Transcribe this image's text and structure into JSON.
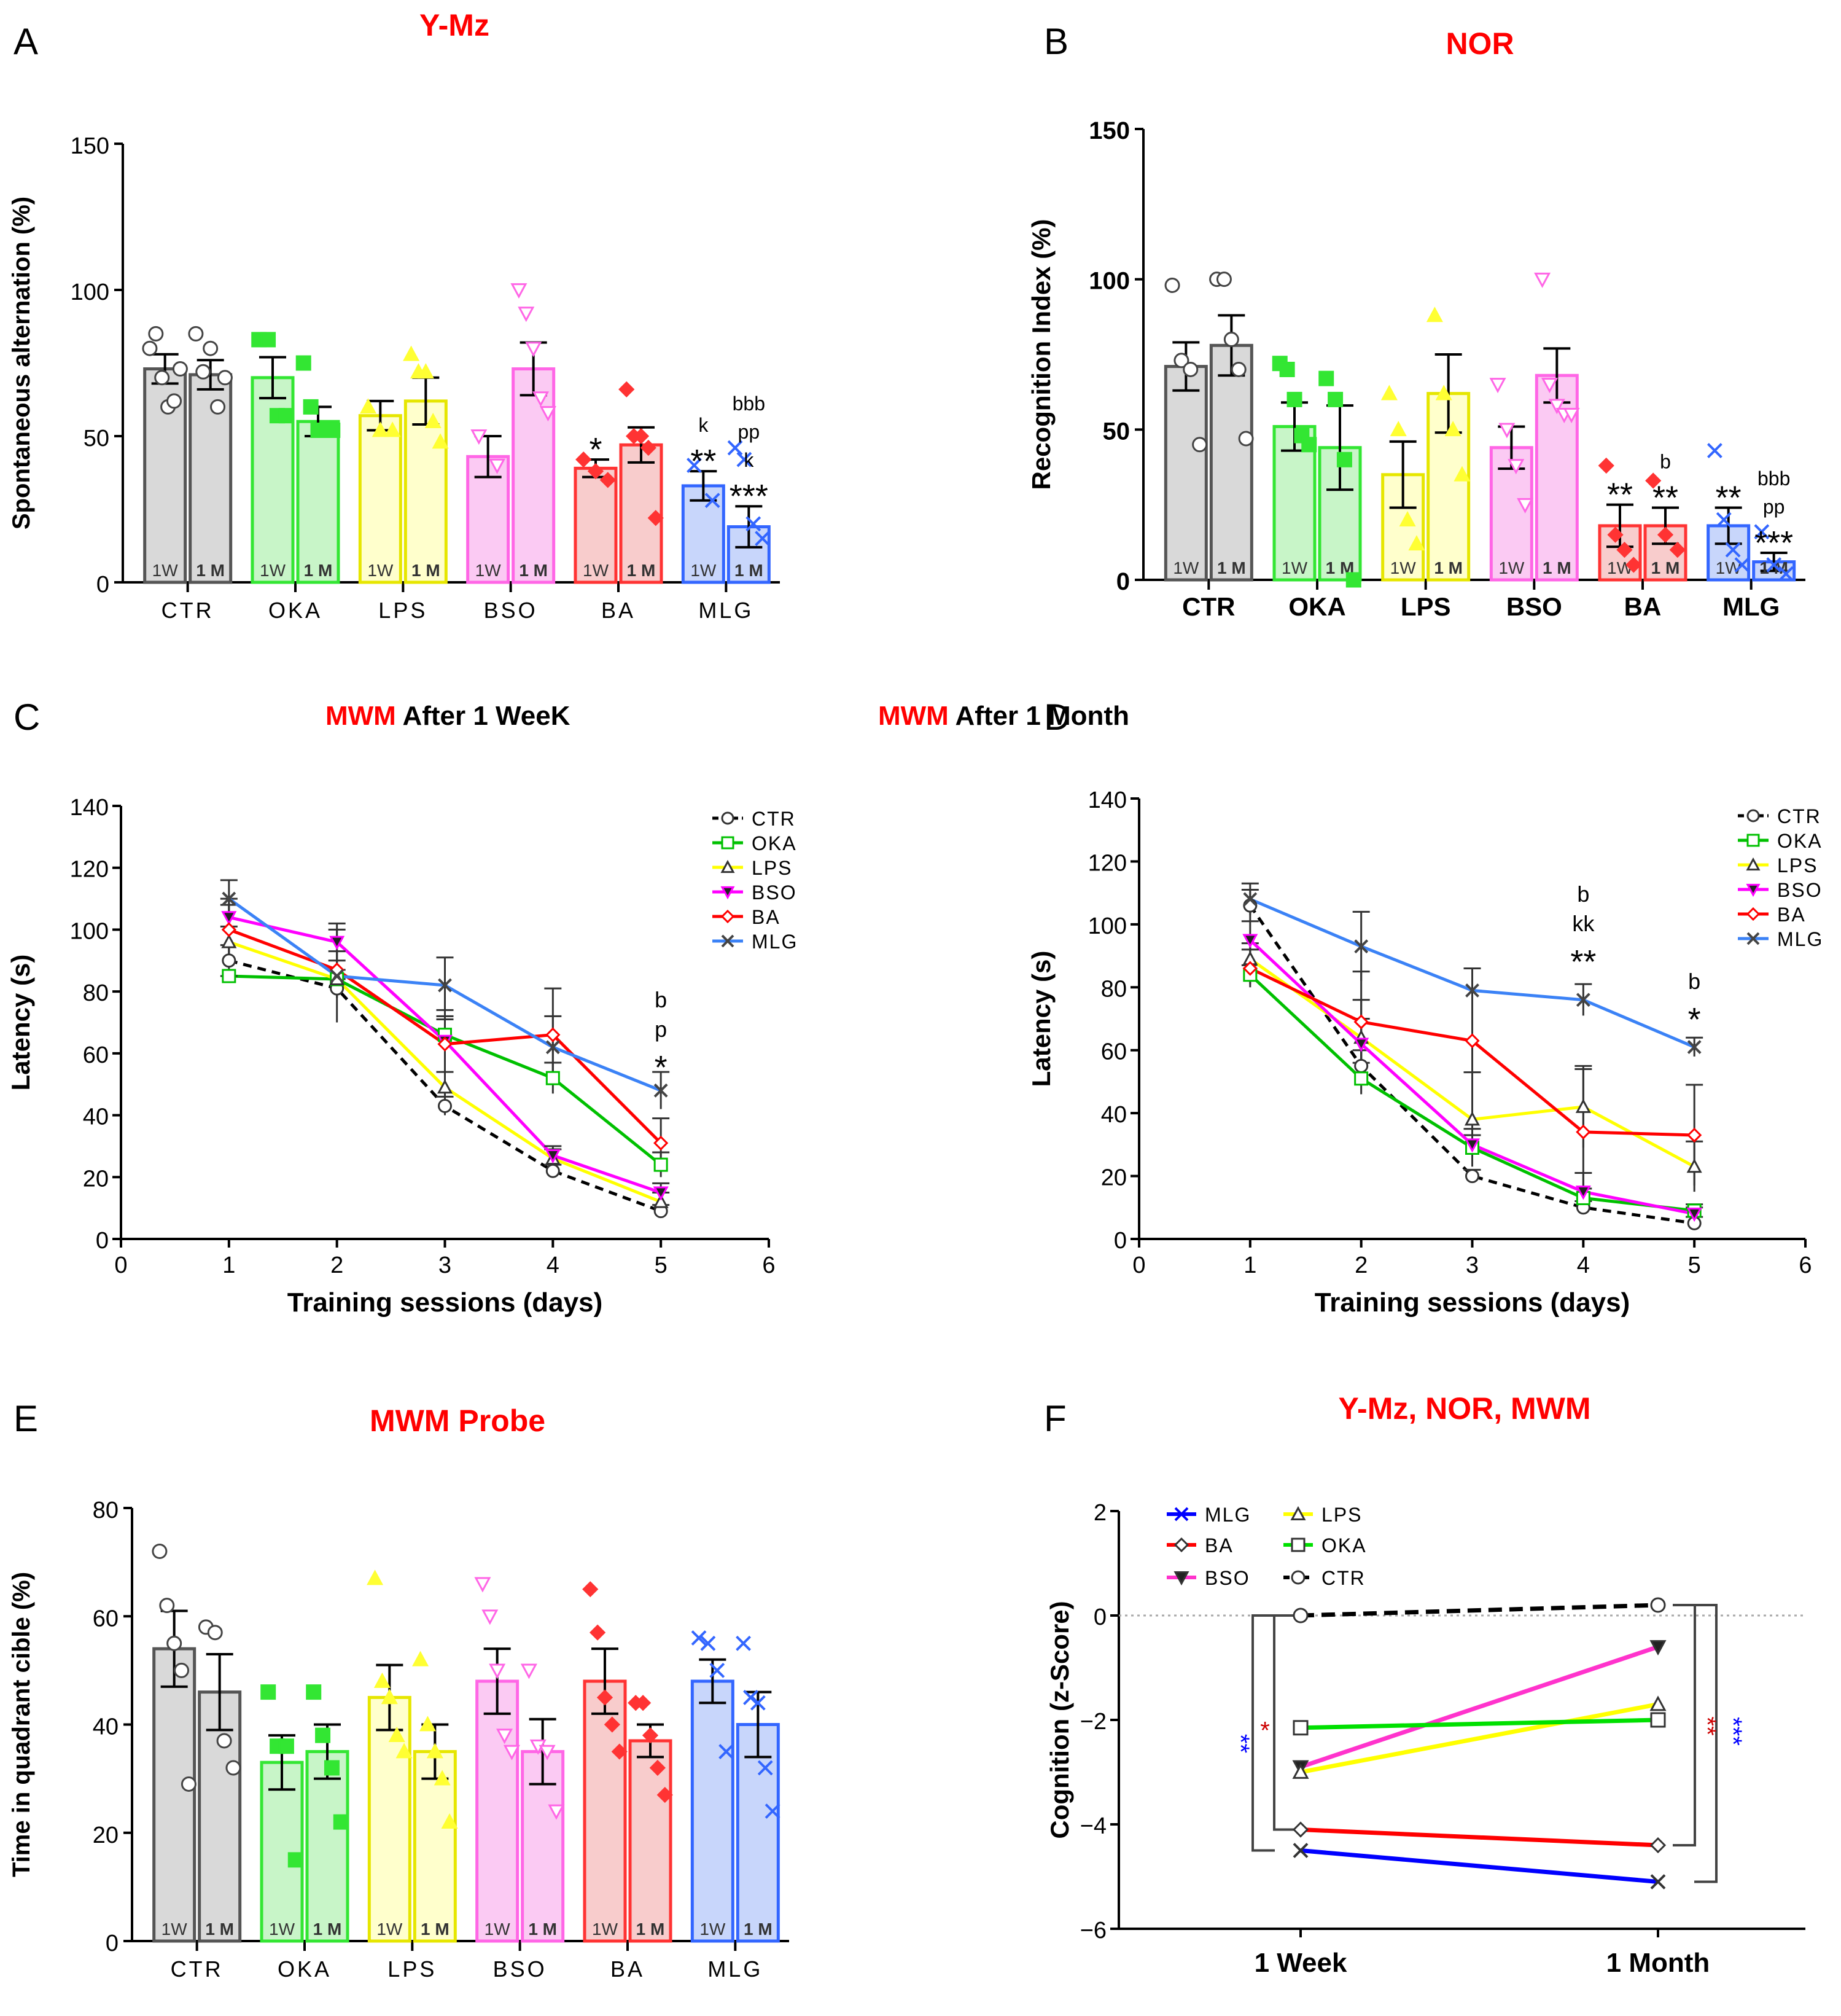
{
  "figure_title": "Behavioral tests figure",
  "panels": {
    "A": {
      "letter": "A",
      "title": "Y-Mz"
    },
    "B": {
      "letter": "B",
      "title": "NOR"
    },
    "C": {
      "letter": "C",
      "title_red": "MWM",
      "title_black": "After 1 WeeK"
    },
    "D": {
      "letter": "D",
      "title_red": "MWM",
      "title_black": "After 1 Month"
    },
    "E": {
      "letter": "E",
      "title": "MWM Probe"
    },
    "F": {
      "letter": "F",
      "title": "Y-Mz, NOR, MWM"
    }
  },
  "group_colors": {
    "CTR": "#c9c9c9",
    "OKA": "#33e633",
    "LPS": "#ffff33",
    "BSO": "#ff66e6",
    "BA": "#ff3333",
    "MLG": "#3366ff"
  },
  "group_fill": {
    "CTR": "#d9d9d9",
    "OKA": "#c8f5c8",
    "LPS": "#ffffcc",
    "BSO": "#fbcaf3",
    "BA": "#f8cccc",
    "MLG": "#c8d6fb"
  },
  "line_colors": {
    "CTR": "#000000",
    "OKA": "#00c000",
    "LPS": "#ffff00",
    "BSO": "#ff00ff",
    "BA": "#ff0000",
    "MLG": "#3b82f6"
  },
  "f_colors": {
    "MLG": "#0000ff",
    "BA": "#ff0000",
    "BSO": "#ff33cc",
    "LPS": "#ffff00",
    "OKA": "#00e000",
    "CTR": "#000000"
  },
  "chart_data": [
    {
      "id": "A",
      "type": "bar",
      "title": "Y-Mz",
      "ylabel": "Spontaneous alternation (%)",
      "ylim": [
        0,
        150
      ],
      "yticks": [
        0,
        50,
        100,
        150
      ],
      "categories": [
        "CTR",
        "OKA",
        "LPS",
        "BSO",
        "BA",
        "MLG"
      ],
      "bar_labels": [
        "1W",
        "1 M"
      ],
      "series": [
        {
          "name": "1W",
          "values": [
            73,
            70,
            57,
            43,
            39,
            33
          ],
          "sem": [
            5,
            7,
            5,
            7,
            3,
            5
          ]
        },
        {
          "name": "1 M",
          "values": [
            71,
            55,
            62,
            73,
            47,
            19
          ],
          "sem": [
            5,
            5,
            8,
            9,
            6,
            7
          ]
        }
      ],
      "points": [
        [
          [
            80,
            85,
            70,
            60,
            62,
            73
          ],
          [
            85,
            72,
            80,
            60,
            70
          ]
        ],
        [
          [
            83,
            83,
            57,
            57
          ],
          [
            75,
            60,
            52,
            52,
            52
          ]
        ],
        [
          [
            60,
            52,
            52
          ],
          [
            78,
            72,
            72,
            55,
            48
          ]
        ],
        [
          [
            50,
            40
          ],
          [
            100,
            92,
            80,
            63,
            58
          ]
        ],
        [
          [
            42,
            38,
            35
          ],
          [
            66,
            50,
            50,
            46,
            22
          ]
        ],
        [
          [
            40,
            28
          ],
          [
            46,
            42,
            20,
            15
          ]
        ]
      ],
      "annotations": [
        {
          "group": 4,
          "bar": 0,
          "lines": [
            "*"
          ]
        },
        {
          "group": 5,
          "bar": 0,
          "lines": [
            "k",
            "**"
          ]
        },
        {
          "group": 5,
          "bar": 1,
          "lines": [
            "bbb",
            "pp",
            "k",
            "***"
          ]
        }
      ]
    },
    {
      "id": "B",
      "type": "bar",
      "title": "NOR",
      "ylabel": "Recognition Index (%)",
      "ylim": [
        0,
        150
      ],
      "yticks": [
        0,
        50,
        100,
        150
      ],
      "categories": [
        "CTR",
        "OKA",
        "LPS",
        "BSO",
        "BA",
        "MLG"
      ],
      "bar_labels": [
        "1W",
        "1 M"
      ],
      "series": [
        {
          "name": "1W",
          "values": [
            71,
            51,
            35,
            44,
            18,
            18
          ],
          "sem": [
            8,
            8,
            11,
            7,
            7,
            6
          ]
        },
        {
          "name": "1 M",
          "values": [
            78,
            44,
            62,
            68,
            18,
            6
          ],
          "sem": [
            10,
            14,
            13,
            9,
            6,
            3
          ]
        }
      ],
      "points": [
        [
          [
            98,
            73,
            70,
            45
          ],
          [
            100,
            100,
            80,
            70,
            47
          ]
        ],
        [
          [
            72,
            70,
            60,
            48,
            45
          ],
          [
            67,
            60,
            40,
            0
          ]
        ],
        [
          [
            62,
            50,
            20,
            12
          ],
          [
            88,
            62,
            50,
            35
          ]
        ],
        [
          [
            65,
            50,
            38,
            25
          ],
          [
            100,
            65,
            58,
            55,
            55
          ]
        ],
        [
          [
            38,
            15,
            10,
            5
          ],
          [
            33,
            15,
            10
          ]
        ],
        [
          [
            43,
            20,
            10,
            5
          ],
          [
            16,
            5,
            2
          ]
        ]
      ],
      "annotations": [
        {
          "group": 4,
          "bar": 0,
          "lines": [
            "**"
          ]
        },
        {
          "group": 4,
          "bar": 1,
          "lines": [
            "b",
            "**"
          ]
        },
        {
          "group": 5,
          "bar": 0,
          "lines": [
            "**"
          ]
        },
        {
          "group": 5,
          "bar": 1,
          "lines": [
            "bbb",
            "pp",
            "***"
          ]
        }
      ]
    },
    {
      "id": "C",
      "type": "line",
      "title": "MWM After 1 WeeK",
      "xlabel": "Training sessions (days)",
      "ylabel": "Latency (s)",
      "xlim": [
        0,
        6
      ],
      "ylim": [
        0,
        140
      ],
      "xticks": [
        0,
        1,
        2,
        3,
        4,
        5,
        6
      ],
      "yticks": [
        0,
        20,
        40,
        60,
        80,
        100,
        120,
        140
      ],
      "x": [
        1,
        2,
        3,
        4,
        5
      ],
      "series": [
        {
          "name": "CTR",
          "values": [
            90,
            81,
            43,
            22,
            9
          ],
          "err": [
            5,
            3,
            3,
            2,
            2
          ]
        },
        {
          "name": "OKA",
          "values": [
            85,
            84,
            66,
            52,
            24
          ],
          "err": [
            0,
            3,
            6,
            5,
            4
          ]
        },
        {
          "name": "LPS",
          "values": [
            96,
            84,
            49,
            26,
            12
          ],
          "err": [
            5,
            6,
            5,
            3,
            3
          ]
        },
        {
          "name": "BSO",
          "values": [
            104,
            96,
            64,
            27,
            15
          ],
          "err": [
            6,
            6,
            10,
            3,
            3
          ]
        },
        {
          "name": "BA",
          "values": [
            100,
            87,
            63,
            66,
            31
          ],
          "err": [
            8,
            6,
            8,
            15,
            8
          ]
        },
        {
          "name": "MLG",
          "values": [
            110,
            85,
            82,
            62,
            48
          ],
          "err": [
            6,
            15,
            9,
            10,
            6
          ]
        }
      ],
      "annotations": [
        {
          "x": 5,
          "lines": [
            "b",
            "p",
            "*"
          ]
        }
      ]
    },
    {
      "id": "D",
      "type": "line",
      "title": "MWM After 1 Month",
      "xlabel": "Training sessions (days)",
      "ylabel": "Latency (s)",
      "xlim": [
        0,
        6
      ],
      "ylim": [
        0,
        140
      ],
      "xticks": [
        0,
        1,
        2,
        3,
        4,
        5,
        6
      ],
      "yticks": [
        0,
        20,
        40,
        60,
        80,
        100,
        120,
        140
      ],
      "x": [
        1,
        2,
        3,
        4,
        5
      ],
      "series": [
        {
          "name": "CTR",
          "values": [
            106,
            55,
            20,
            10,
            5
          ],
          "err": [
            5,
            5,
            2,
            2,
            2
          ]
        },
        {
          "name": "OKA",
          "values": [
            84,
            51,
            29,
            13,
            9
          ],
          "err": [
            3,
            5,
            4,
            3,
            2
          ]
        },
        {
          "name": "LPS",
          "values": [
            89,
            64,
            38,
            42,
            23
          ],
          "err": [
            5,
            12,
            15,
            13,
            8
          ]
        },
        {
          "name": "BSO",
          "values": [
            95,
            62,
            30,
            15,
            8
          ],
          "err": [
            6,
            8,
            5,
            6,
            2
          ]
        },
        {
          "name": "BA",
          "values": [
            86,
            69,
            63,
            34,
            33
          ],
          "err": [
            6,
            16,
            23,
            20,
            16
          ]
        },
        {
          "name": "MLG",
          "values": [
            108,
            93,
            79,
            76,
            61
          ],
          "err": [
            5,
            11,
            7,
            5,
            3
          ]
        }
      ],
      "annotations": [
        {
          "x": 4,
          "lines": [
            "b",
            "kk",
            "**"
          ]
        },
        {
          "x": 5,
          "lines": [
            "b",
            "*"
          ]
        }
      ]
    },
    {
      "id": "E",
      "type": "bar",
      "title": "MWM Probe",
      "ylabel": "Time in quadrant cible (%)",
      "ylim": [
        0,
        80
      ],
      "yticks": [
        0,
        20,
        40,
        60,
        80
      ],
      "categories": [
        "CTR",
        "OKA",
        "LPS",
        "BSO",
        "BA",
        "MLG"
      ],
      "bar_labels": [
        "1W",
        "1 M"
      ],
      "series": [
        {
          "name": "1W",
          "values": [
            54,
            33,
            45,
            48,
            48,
            48
          ],
          "sem": [
            7,
            5,
            6,
            6,
            6,
            4
          ]
        },
        {
          "name": "1 M",
          "values": [
            46,
            35,
            35,
            35,
            37,
            40
          ],
          "sem": [
            7,
            5,
            5,
            6,
            3,
            6
          ]
        }
      ],
      "points": [
        [
          [
            72,
            62,
            55,
            50,
            29
          ],
          [
            58,
            57,
            37,
            32
          ]
        ],
        [
          [
            46,
            36,
            36,
            15
          ],
          [
            46,
            38,
            32,
            22
          ]
        ],
        [
          [
            67,
            48,
            45,
            38,
            35
          ],
          [
            52,
            40,
            35,
            30,
            22
          ]
        ],
        [
          [
            66,
            60,
            50,
            38,
            35
          ],
          [
            50,
            36,
            35,
            24
          ]
        ],
        [
          [
            65,
            57,
            45,
            40,
            35
          ],
          [
            44,
            44,
            38,
            32,
            27
          ]
        ],
        [
          [
            56,
            55,
            50,
            35
          ],
          [
            55,
            45,
            44,
            32,
            24
          ]
        ]
      ],
      "annotations": []
    },
    {
      "id": "F",
      "type": "line",
      "title": "Y-Mz, NOR, MWM",
      "ylabel": "Cognition (z-Score)",
      "ylim": [
        -6,
        2
      ],
      "yticks": [
        -6,
        -4,
        -2,
        0,
        2
      ],
      "categories": [
        "1 Week",
        "1 Month"
      ],
      "series": [
        {
          "name": "MLG",
          "values": [
            -4.5,
            -5.1
          ]
        },
        {
          "name": "BA",
          "values": [
            -4.1,
            -4.4
          ]
        },
        {
          "name": "BSO",
          "values": [
            -2.9,
            -0.6
          ]
        },
        {
          "name": "LPS",
          "values": [
            -3.0,
            -1.7
          ]
        },
        {
          "name": "OKA",
          "values": [
            -2.15,
            -2.0
          ]
        },
        {
          "name": "CTR",
          "values": [
            0.0,
            0.2
          ]
        }
      ],
      "legend": [
        "MLG",
        "LPS",
        "BA",
        "OKA",
        "BSO",
        "CTR"
      ],
      "annotations": [
        {
          "side": "left",
          "color": "blue",
          "text": "**"
        },
        {
          "side": "left",
          "color": "red",
          "text": "*"
        },
        {
          "side": "right",
          "color": "red",
          "text": "**"
        },
        {
          "side": "right",
          "color": "blue",
          "text": "***"
        }
      ]
    }
  ]
}
